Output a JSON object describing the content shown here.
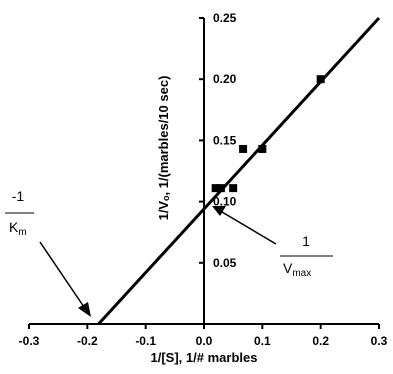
{
  "chart_data": {
    "type": "scatter",
    "xlabel": "1/[S], 1/# marbles",
    "ylabel": "1/Vₒ, 1/(marbles/10 sec)",
    "xlim": [
      -0.3,
      0.3
    ],
    "ylim": [
      0,
      0.25
    ],
    "x_ticks": [
      "-0.3",
      "-0.2",
      "-0.1",
      "0.0",
      "0.1",
      "0.2",
      "0.3"
    ],
    "y_ticks": [
      "0.05",
      "0.10",
      "0.15",
      "0.20",
      "0.25"
    ],
    "x_tick_values": [
      -0.3,
      -0.2,
      -0.1,
      0.0,
      0.1,
      0.2,
      0.3
    ],
    "y_tick_values": [
      0.05,
      0.1,
      0.15,
      0.2,
      0.25
    ],
    "points": [
      {
        "x": 0.02,
        "y": 0.111
      },
      {
        "x": 0.029,
        "y": 0.111
      },
      {
        "x": 0.05,
        "y": 0.111
      },
      {
        "x": 0.067,
        "y": 0.143
      },
      {
        "x": 0.1,
        "y": 0.143
      },
      {
        "x": 0.2,
        "y": 0.2
      }
    ],
    "fit_line": {
      "slope": 0.52,
      "intercept": 0.094,
      "x_start": -0.181,
      "x_end": 0.3
    },
    "grid": false,
    "legend": "none",
    "annotations": {
      "km": {
        "numerator": "-1",
        "denominator": "K",
        "denominator_sub": "m"
      },
      "vmax": {
        "numerator": "1",
        "denominator": "V",
        "denominator_sub": "max"
      }
    },
    "colors": {
      "line": "#000000",
      "marker": "#000000"
    }
  }
}
